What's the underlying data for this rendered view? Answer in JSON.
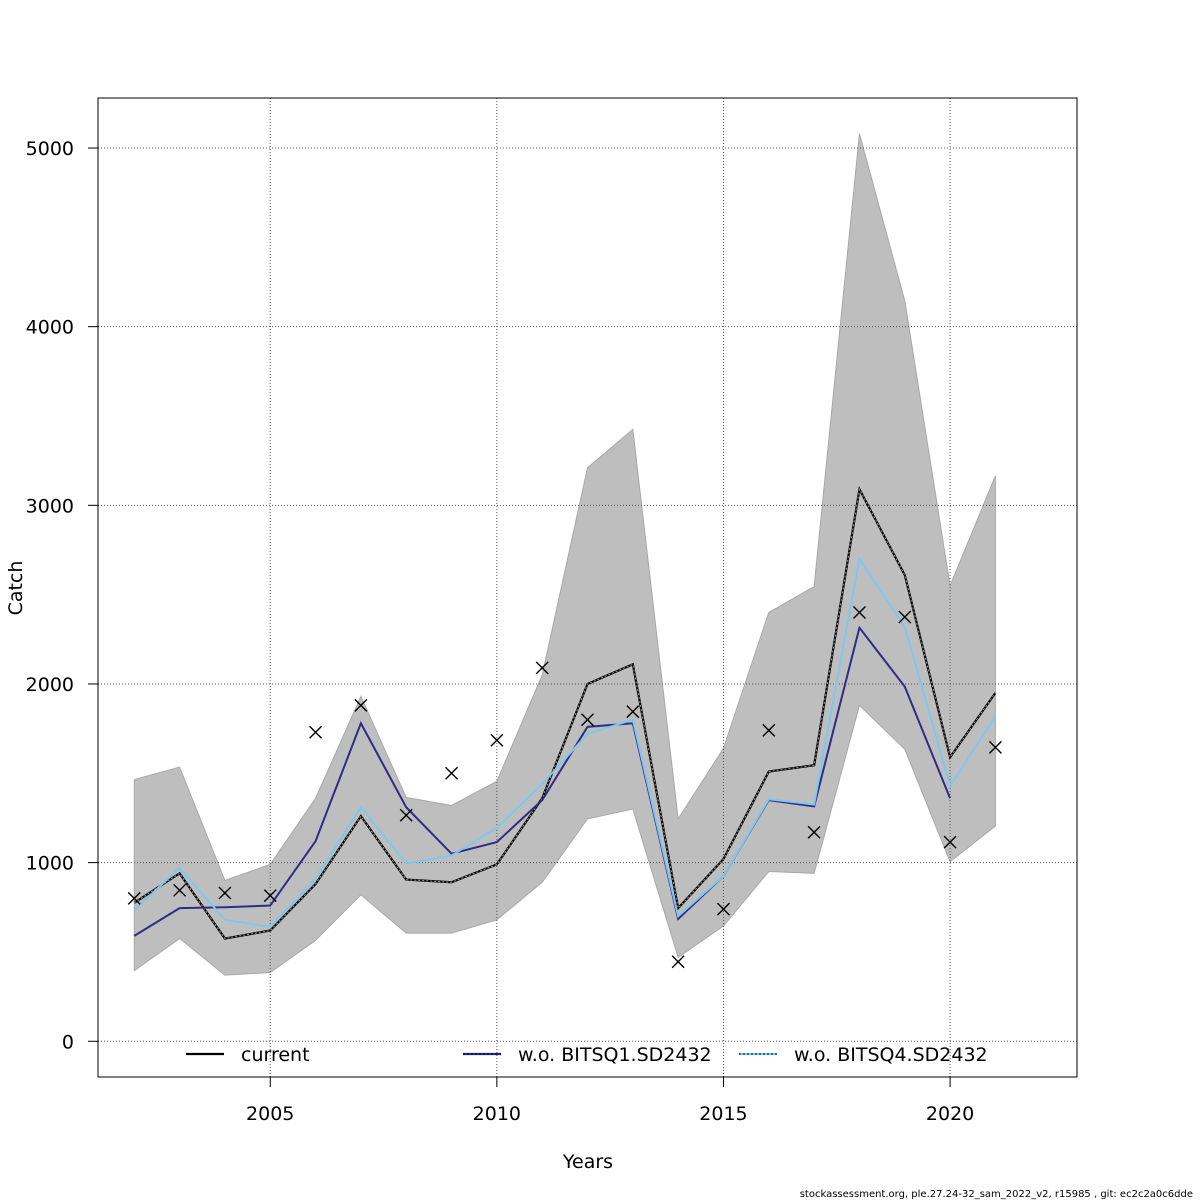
{
  "chart_data": {
    "type": "line",
    "xlabel": "Years",
    "ylabel": "Catch",
    "xlim": [
      2001.2,
      2022.8
    ],
    "ylim": [
      -200,
      5280
    ],
    "x_ticks": [
      2005,
      2010,
      2015,
      2020
    ],
    "y_ticks": [
      0,
      1000,
      2000,
      3000,
      4000,
      5000
    ],
    "grid": true,
    "legend_position": "bottom",
    "x": [
      2002,
      2003,
      2004,
      2005,
      2006,
      2007,
      2008,
      2009,
      2010,
      2011,
      2012,
      2013,
      2014,
      2015,
      2016,
      2017,
      2018,
      2019,
      2020,
      2021
    ],
    "band": {
      "color": "#bebebe",
      "lower": [
        395,
        575,
        370,
        385,
        565,
        820,
        605,
        605,
        680,
        890,
        1245,
        1300,
        470,
        645,
        950,
        940,
        1880,
        1635,
        1005,
        1205
      ],
      "upper": [
        1465,
        1535,
        900,
        990,
        1360,
        1930,
        1365,
        1320,
        1455,
        2050,
        3210,
        3425,
        1245,
        1640,
        2400,
        2545,
        5080,
        4145,
        2550,
        3165
      ]
    },
    "series": [
      {
        "name": "current",
        "color": "#000000",
        "style": "solid",
        "values": [
          775,
          940,
          575,
          620,
          880,
          1260,
          905,
          890,
          990,
          1360,
          2000,
          2110,
          745,
          1020,
          1510,
          1545,
          3090,
          2610,
          1590,
          1950
        ]
      },
      {
        "name": "w.o. BITSQ1.SD2432",
        "color": "#2e2c86",
        "style": "solid",
        "values": [
          590,
          745,
          750,
          760,
          1120,
          1780,
          1310,
          1050,
          1115,
          1350,
          1760,
          1780,
          685,
          925,
          1350,
          1315,
          2315,
          1985,
          1360,
          null
        ]
      },
      {
        "name": "w.o. BITSQ4.SD2432",
        "color": "#7ec8f0",
        "style": "solid",
        "values": [
          735,
          970,
          680,
          640,
          910,
          1310,
          995,
          1040,
          1195,
          1440,
          1720,
          1800,
          700,
          925,
          1355,
          1325,
          2700,
          2320,
          1430,
          1820
        ]
      }
    ],
    "observations": {
      "marker": "x",
      "values": [
        800,
        845,
        830,
        815,
        1730,
        1880,
        1265,
        1500,
        1685,
        2090,
        1800,
        1845,
        445,
        740,
        1740,
        1170,
        2400,
        2375,
        1115,
        1645
      ]
    }
  },
  "footer": "stockassessment.org, ple.27.24-32_sam_2022_v2, r15985 , git: ec2c2a0c6dde"
}
